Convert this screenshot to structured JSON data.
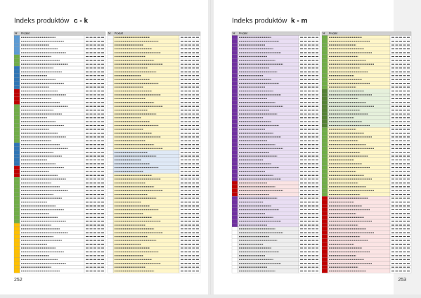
{
  "pages": [
    {
      "title": "Indeks produktów",
      "range": "c - k",
      "number": "252",
      "columns": [
        {
          "headers": [
            "Nr",
            "Produkt"
          ]
        },
        {
          "headers": [
            "Nr",
            "Produkt"
          ]
        }
      ]
    },
    {
      "title": "Indeks produktów",
      "range": "k - m",
      "number": "253",
      "columns": [
        {
          "headers": [
            "Nr",
            "Produkt"
          ]
        },
        {
          "headers": [
            "Nr",
            "Produkt"
          ]
        }
      ]
    }
  ]
}
